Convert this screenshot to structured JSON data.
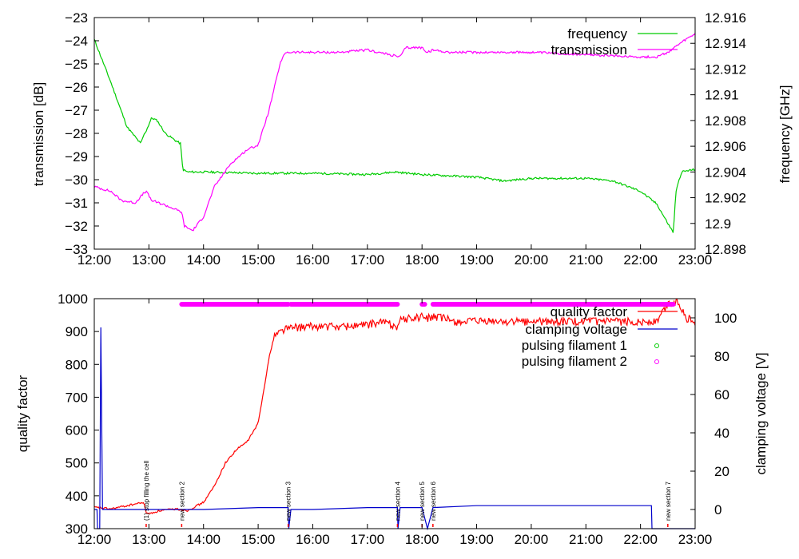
{
  "chart_data": [
    {
      "type": "line",
      "title": "",
      "xlabel": "",
      "ylabel": "transmission [dB]",
      "y2label": "frequency [GHz]",
      "xlim": [
        12,
        23
      ],
      "ylim": [
        -33,
        -23
      ],
      "y2lim": [
        12.898,
        12.916
      ],
      "grid": false,
      "legend_position": "top-right",
      "x_ticks": [
        "12:00",
        "13:00",
        "14:00",
        "15:00",
        "16:00",
        "17:00",
        "18:00",
        "19:00",
        "20:00",
        "21:00",
        "22:00",
        "23:00"
      ],
      "y_ticks": [
        "-33",
        "-32",
        "-31",
        "-30",
        "-29",
        "-28",
        "-27",
        "-26",
        "-25",
        "-24",
        "-23"
      ],
      "y2_ticks": [
        "12.898",
        "12.9",
        "12.902",
        "12.904",
        "12.906",
        "12.908",
        "12.91",
        "12.912",
        "12.914",
        "12.916"
      ],
      "series": [
        {
          "name": "frequency",
          "axis": "y2",
          "color": "#00cc00",
          "x": [
            12.0,
            12.3,
            12.6,
            12.85,
            12.9,
            12.95,
            13.05,
            13.15,
            13.3,
            13.5,
            13.58,
            13.62,
            13.7,
            14.0,
            15.0,
            16.0,
            17.0,
            17.5,
            18.0,
            18.5,
            19.0,
            19.5,
            20.0,
            21.0,
            21.5,
            22.0,
            22.3,
            22.5,
            22.6,
            22.65,
            22.75,
            23.0
          ],
          "y": [
            12.9143,
            12.911,
            12.9075,
            12.9062,
            12.9068,
            12.9072,
            12.9082,
            12.908,
            12.907,
            12.9064,
            12.9062,
            12.9042,
            12.904,
            12.904,
            12.9039,
            12.9039,
            12.9038,
            12.904,
            12.9038,
            12.9037,
            12.9036,
            12.9033,
            12.9035,
            12.9035,
            12.9033,
            12.9025,
            12.9015,
            12.9,
            12.8993,
            12.9025,
            12.904,
            12.9042
          ]
        },
        {
          "name": "transmission",
          "axis": "y",
          "color": "#ff00ff",
          "x": [
            12.0,
            12.3,
            12.5,
            12.75,
            12.9,
            12.95,
            13.05,
            13.3,
            13.5,
            13.6,
            13.65,
            13.8,
            14.0,
            14.2,
            14.5,
            14.8,
            15.0,
            15.2,
            15.4,
            15.5,
            16.0,
            16.5,
            17.0,
            17.4,
            17.6,
            17.7,
            18.0,
            18.1,
            18.2,
            18.5,
            19.0,
            20.0,
            21.0,
            22.0,
            22.3,
            22.5,
            22.8,
            23.0
          ],
          "y": [
            -30.3,
            -30.5,
            -30.9,
            -31.0,
            -30.6,
            -30.5,
            -30.9,
            -31.1,
            -31.3,
            -31.4,
            -32.0,
            -32.2,
            -31.6,
            -30.3,
            -29.3,
            -28.7,
            -28.5,
            -27.0,
            -25.0,
            -24.5,
            -24.5,
            -24.5,
            -24.4,
            -24.6,
            -24.7,
            -24.3,
            -24.3,
            -24.5,
            -24.4,
            -24.5,
            -24.5,
            -24.5,
            -24.6,
            -24.7,
            -24.7,
            -24.5,
            -24.0,
            -23.7
          ]
        }
      ]
    },
    {
      "type": "line",
      "title": "",
      "xlabel": "",
      "ylabel": "quality factor",
      "y2label": "clamping voltage [V]",
      "xlim": [
        12,
        23
      ],
      "ylim": [
        300,
        1000
      ],
      "y2lim": [
        -10,
        110
      ],
      "grid": false,
      "legend_position": "top-right",
      "x_ticks": [
        "12:00",
        "13:00",
        "14:00",
        "15:00",
        "16:00",
        "17:00",
        "18:00",
        "19:00",
        "20:00",
        "21:00",
        "22:00",
        "23:00"
      ],
      "y_ticks": [
        "300",
        "400",
        "500",
        "600",
        "700",
        "800",
        "900",
        "1000"
      ],
      "y2_ticks": [
        "0",
        "20",
        "40",
        "60",
        "80",
        "100"
      ],
      "series": [
        {
          "name": "quality factor",
          "axis": "y",
          "color": "#ff0000",
          "x": [
            12.0,
            12.3,
            12.6,
            12.9,
            12.95,
            13.0,
            13.2,
            13.5,
            13.7,
            14.0,
            14.2,
            14.4,
            14.6,
            14.8,
            15.0,
            15.1,
            15.2,
            15.3,
            15.5,
            16.0,
            16.5,
            17.0,
            17.3,
            17.55,
            17.6,
            17.8,
            18.0,
            18.1,
            18.2,
            18.4,
            18.6,
            19.0,
            20.0,
            21.0,
            22.0,
            22.3,
            22.5,
            22.7,
            22.85,
            23.0
          ],
          "y": [
            365,
            360,
            370,
            380,
            350,
            345,
            355,
            360,
            355,
            380,
            430,
            500,
            540,
            565,
            620,
            720,
            820,
            890,
            910,
            915,
            915,
            920,
            930,
            915,
            935,
            940,
            945,
            940,
            945,
            940,
            930,
            930,
            930,
            930,
            930,
            930,
            985,
            990,
            940,
            930
          ]
        },
        {
          "name": "clamping voltage",
          "axis": "y2",
          "color": "#0000cc",
          "x": [
            12.0,
            12.05,
            12.06,
            12.1,
            12.12,
            12.15,
            12.2,
            13.0,
            14.0,
            15.0,
            15.55,
            15.56,
            15.6,
            16.0,
            17.0,
            17.55,
            17.56,
            17.6,
            18.0,
            18.1,
            18.2,
            19.0,
            20.0,
            21.0,
            22.0,
            22.2,
            22.21,
            22.25,
            23.0
          ],
          "y": [
            0,
            0,
            -10,
            -10,
            95,
            0,
            0,
            0,
            0,
            1,
            1,
            -10,
            0,
            0,
            1,
            1,
            -10,
            1,
            1,
            -10,
            1,
            2,
            2,
            2,
            2,
            2,
            -10,
            -10,
            -10
          ]
        },
        {
          "name": "pulsing filament 1",
          "axis": "y",
          "color": "#00cc00",
          "x": [],
          "y": []
        },
        {
          "name": "pulsing filament 2",
          "axis": "y",
          "color": "#ff00ff",
          "segments": [
            [
              13.6,
              15.55
            ],
            [
              15.6,
              17.55
            ],
            [
              18.0,
              18.05
            ],
            [
              18.2,
              22.6
            ]
          ],
          "y": 983
        }
      ],
      "annotations": [
        {
          "x": 12.95,
          "text": "(1) stop filling the cell"
        },
        {
          "x": 13.6,
          "text": "new section 2"
        },
        {
          "x": 15.55,
          "text": "new section 3"
        },
        {
          "x": 17.55,
          "text": "new section 4"
        },
        {
          "x": 18.0,
          "text": "new section 5"
        },
        {
          "x": 18.2,
          "text": "new section 6"
        },
        {
          "x": 22.5,
          "text": "new section 7"
        }
      ]
    }
  ]
}
